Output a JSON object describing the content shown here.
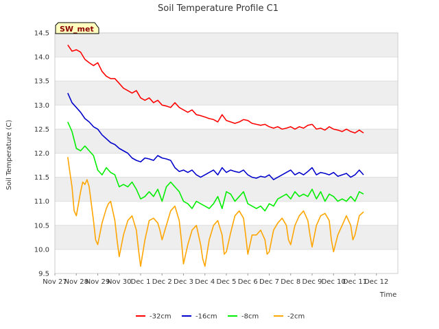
{
  "chart_data": {
    "type": "line",
    "title": "Soil Temperature Profile C1",
    "xlabel": "Time",
    "ylabel": "Soil Temperature (C)",
    "ylim": [
      9.5,
      14.5
    ],
    "xlim": [
      0,
      16
    ],
    "yticks": [
      9.5,
      10.0,
      10.5,
      11.0,
      11.5,
      12.0,
      12.5,
      13.0,
      13.5,
      14.0,
      14.5
    ],
    "xticks": [
      {
        "pos": 0,
        "label": "Nov 27"
      },
      {
        "pos": 1,
        "label": "Nov 28"
      },
      {
        "pos": 2,
        "label": "Nov 29"
      },
      {
        "pos": 3,
        "label": "Nov 30"
      },
      {
        "pos": 4,
        "label": "Dec 1"
      },
      {
        "pos": 5,
        "label": "Dec 2"
      },
      {
        "pos": 6,
        "label": "Dec 3"
      },
      {
        "pos": 7,
        "label": "Dec 4"
      },
      {
        "pos": 8,
        "label": "Dec 5"
      },
      {
        "pos": 9,
        "label": "Dec 6"
      },
      {
        "pos": 10,
        "label": "Dec 7"
      },
      {
        "pos": 11,
        "label": "Dec 8"
      },
      {
        "pos": 12,
        "label": "Dec 9"
      },
      {
        "pos": 13,
        "label": "Dec 10"
      },
      {
        "pos": 14,
        "label": "Dec 11"
      },
      {
        "pos": 15,
        "label": "Dec 12"
      }
    ],
    "badge": "SW_met",
    "grid": "horizontal bands",
    "legend_position": "bottom",
    "series": [
      {
        "name": "-32cm",
        "color": "#ff0000",
        "x": [
          0.6,
          0.8,
          1.0,
          1.2,
          1.4,
          1.6,
          1.8,
          2.0,
          2.2,
          2.4,
          2.6,
          2.8,
          3.0,
          3.2,
          3.4,
          3.6,
          3.8,
          4.0,
          4.2,
          4.4,
          4.6,
          4.8,
          5.0,
          5.2,
          5.4,
          5.6,
          5.8,
          6.0,
          6.2,
          6.4,
          6.6,
          6.8,
          7.0,
          7.2,
          7.4,
          7.6,
          7.8,
          8.0,
          8.2,
          8.4,
          8.6,
          8.8,
          9.0,
          9.2,
          9.4,
          9.6,
          9.8,
          10.0,
          10.2,
          10.4,
          10.6,
          10.8,
          11.0,
          11.2,
          11.4,
          11.6,
          11.8,
          12.0,
          12.2,
          12.4,
          12.6,
          12.8,
          13.0,
          13.2,
          13.4,
          13.6,
          13.8,
          14.0,
          14.2,
          14.4
        ],
        "y": [
          14.25,
          14.12,
          14.15,
          14.1,
          13.95,
          13.88,
          13.82,
          13.88,
          13.7,
          13.6,
          13.55,
          13.55,
          13.45,
          13.35,
          13.3,
          13.25,
          13.3,
          13.15,
          13.1,
          13.15,
          13.05,
          13.1,
          13.0,
          12.98,
          12.95,
          13.05,
          12.95,
          12.9,
          12.85,
          12.9,
          12.8,
          12.78,
          12.75,
          12.72,
          12.7,
          12.65,
          12.8,
          12.68,
          12.65,
          12.62,
          12.65,
          12.7,
          12.68,
          12.62,
          12.6,
          12.58,
          12.6,
          12.55,
          12.52,
          12.55,
          12.5,
          12.52,
          12.55,
          12.5,
          12.55,
          12.52,
          12.58,
          12.6,
          12.5,
          12.52,
          12.48,
          12.55,
          12.5,
          12.48,
          12.45,
          12.5,
          12.45,
          12.42,
          12.48,
          12.42
        ]
      },
      {
        "name": "-16cm",
        "color": "#0000cc",
        "x": [
          0.6,
          0.8,
          1.0,
          1.2,
          1.4,
          1.6,
          1.8,
          2.0,
          2.2,
          2.4,
          2.6,
          2.8,
          3.0,
          3.2,
          3.4,
          3.6,
          3.8,
          4.0,
          4.2,
          4.4,
          4.6,
          4.8,
          5.0,
          5.2,
          5.4,
          5.6,
          5.8,
          6.0,
          6.2,
          6.4,
          6.6,
          6.8,
          7.0,
          7.2,
          7.4,
          7.6,
          7.8,
          8.0,
          8.2,
          8.4,
          8.6,
          8.8,
          9.0,
          9.2,
          9.4,
          9.6,
          9.8,
          10.0,
          10.2,
          10.4,
          10.6,
          10.8,
          11.0,
          11.2,
          11.4,
          11.6,
          11.8,
          12.0,
          12.2,
          12.4,
          12.6,
          12.8,
          13.0,
          13.2,
          13.4,
          13.6,
          13.8,
          14.0,
          14.2,
          14.4
        ],
        "y": [
          13.25,
          13.05,
          12.95,
          12.85,
          12.72,
          12.65,
          12.55,
          12.5,
          12.38,
          12.3,
          12.22,
          12.18,
          12.1,
          12.05,
          12.0,
          11.9,
          11.85,
          11.82,
          11.9,
          11.88,
          11.85,
          11.95,
          11.9,
          11.88,
          11.85,
          11.7,
          11.62,
          11.65,
          11.6,
          11.65,
          11.55,
          11.5,
          11.55,
          11.6,
          11.65,
          11.55,
          11.7,
          11.6,
          11.65,
          11.62,
          11.6,
          11.65,
          11.55,
          11.5,
          11.48,
          11.52,
          11.5,
          11.55,
          11.45,
          11.5,
          11.55,
          11.6,
          11.65,
          11.55,
          11.6,
          11.55,
          11.62,
          11.7,
          11.55,
          11.6,
          11.58,
          11.55,
          11.6,
          11.52,
          11.55,
          11.58,
          11.5,
          11.55,
          11.65,
          11.55
        ]
      },
      {
        "name": "-8cm",
        "color": "#00ee00",
        "x": [
          0.6,
          0.8,
          1.0,
          1.2,
          1.4,
          1.6,
          1.8,
          2.0,
          2.2,
          2.4,
          2.6,
          2.8,
          3.0,
          3.2,
          3.4,
          3.6,
          3.8,
          4.0,
          4.2,
          4.4,
          4.6,
          4.8,
          5.0,
          5.2,
          5.4,
          5.6,
          5.8,
          6.0,
          6.2,
          6.4,
          6.6,
          6.8,
          7.0,
          7.2,
          7.4,
          7.6,
          7.8,
          8.0,
          8.2,
          8.4,
          8.6,
          8.8,
          9.0,
          9.2,
          9.4,
          9.6,
          9.8,
          10.0,
          10.2,
          10.4,
          10.6,
          10.8,
          11.0,
          11.2,
          11.4,
          11.6,
          11.8,
          12.0,
          12.2,
          12.4,
          12.6,
          12.8,
          13.0,
          13.2,
          13.4,
          13.6,
          13.8,
          14.0,
          14.2,
          14.4
        ],
        "y": [
          12.65,
          12.45,
          12.1,
          12.05,
          12.15,
          12.05,
          11.95,
          11.65,
          11.55,
          11.7,
          11.6,
          11.55,
          11.3,
          11.35,
          11.3,
          11.4,
          11.25,
          11.05,
          11.1,
          11.2,
          11.1,
          11.25,
          11.0,
          11.3,
          11.4,
          11.3,
          11.2,
          11.0,
          10.95,
          10.85,
          11.0,
          10.95,
          10.9,
          10.85,
          10.95,
          11.1,
          10.85,
          11.2,
          11.15,
          11.0,
          11.1,
          11.2,
          10.95,
          10.9,
          10.85,
          10.9,
          10.8,
          10.95,
          10.9,
          11.05,
          11.1,
          11.15,
          11.05,
          11.2,
          11.1,
          11.15,
          11.1,
          11.25,
          11.05,
          11.2,
          11.0,
          11.15,
          11.1,
          11.0,
          11.05,
          11.0,
          11.1,
          11.0,
          11.2,
          11.15
        ]
      },
      {
        "name": "-2cm",
        "color": "#ffa500",
        "x": [
          0.6,
          0.7,
          0.8,
          0.9,
          1.0,
          1.1,
          1.2,
          1.3,
          1.4,
          1.5,
          1.6,
          1.8,
          1.9,
          2.0,
          2.2,
          2.4,
          2.5,
          2.6,
          2.8,
          2.9,
          3.0,
          3.2,
          3.4,
          3.6,
          3.8,
          3.9,
          4.0,
          4.2,
          4.4,
          4.6,
          4.8,
          4.9,
          5.0,
          5.2,
          5.4,
          5.6,
          5.8,
          5.9,
          6.0,
          6.2,
          6.4,
          6.6,
          6.8,
          6.9,
          7.0,
          7.2,
          7.4,
          7.6,
          7.8,
          7.9,
          8.0,
          8.2,
          8.4,
          8.6,
          8.8,
          8.9,
          9.0,
          9.2,
          9.4,
          9.6,
          9.8,
          9.9,
          10.0,
          10.2,
          10.4,
          10.6,
          10.8,
          10.9,
          11.0,
          11.2,
          11.4,
          11.6,
          11.8,
          11.9,
          12.0,
          12.2,
          12.4,
          12.6,
          12.8,
          12.9,
          13.0,
          13.2,
          13.4,
          13.6,
          13.8,
          13.9,
          14.0,
          14.2,
          14.4
        ],
        "y": [
          11.92,
          11.6,
          11.3,
          10.8,
          10.7,
          10.95,
          11.2,
          11.4,
          11.35,
          11.45,
          11.3,
          10.6,
          10.2,
          10.1,
          10.55,
          10.85,
          10.95,
          11.0,
          10.6,
          10.2,
          9.85,
          10.3,
          10.6,
          10.7,
          10.4,
          10.0,
          9.65,
          10.2,
          10.6,
          10.65,
          10.55,
          10.4,
          10.2,
          10.5,
          10.8,
          10.9,
          10.6,
          10.2,
          9.7,
          10.1,
          10.4,
          10.5,
          10.1,
          9.8,
          9.65,
          10.2,
          10.5,
          10.6,
          10.3,
          9.9,
          9.95,
          10.35,
          10.7,
          10.8,
          10.65,
          10.3,
          9.9,
          10.3,
          10.3,
          10.4,
          10.2,
          9.9,
          9.95,
          10.4,
          10.55,
          10.65,
          10.5,
          10.2,
          10.1,
          10.5,
          10.7,
          10.8,
          10.6,
          10.3,
          10.05,
          10.5,
          10.7,
          10.75,
          10.6,
          10.2,
          9.95,
          10.3,
          10.5,
          10.7,
          10.5,
          10.2,
          10.3,
          10.7,
          10.78
        ]
      }
    ]
  }
}
